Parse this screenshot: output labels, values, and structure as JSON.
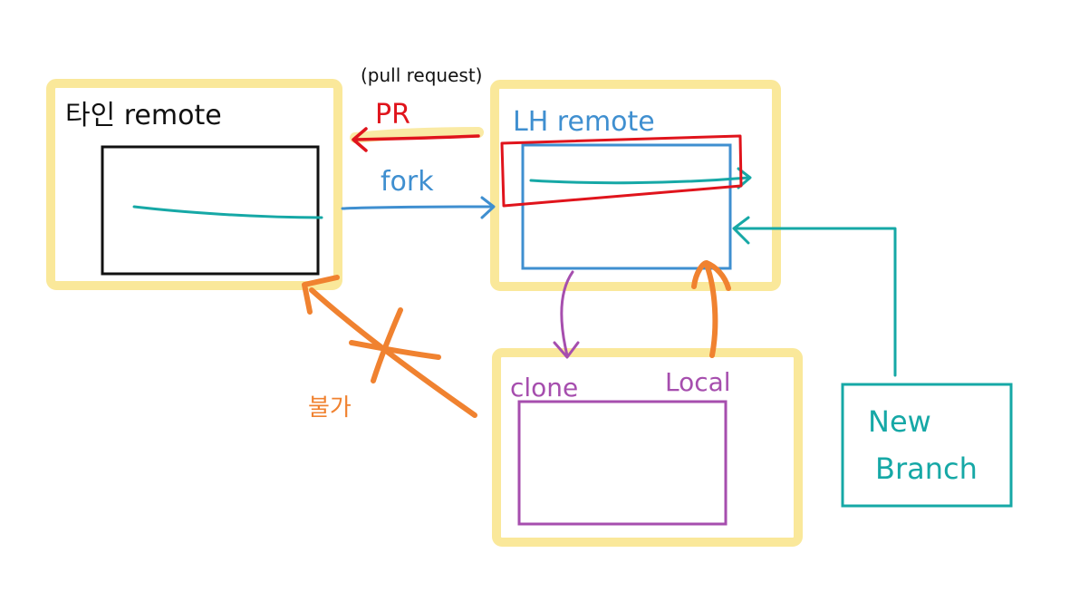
{
  "colors": {
    "highlight": "#FAE89A",
    "black": "#111111",
    "blue": "#3F8FD0",
    "red": "#E0141C",
    "teal": "#16A8A6",
    "purple": "#A64EAE",
    "orange": "#F08230"
  },
  "others_remote": {
    "label": "타인 remote"
  },
  "my_remote": {
    "label": "LH remote"
  },
  "local": {
    "clone_label": "clone",
    "local_label": "Local"
  },
  "new_branch": {
    "line1": "New",
    "line2": "Branch"
  },
  "pull_request": {
    "full": "(pull request)",
    "short": "PR"
  },
  "fork_label": "fork",
  "impossible_label": "불가"
}
